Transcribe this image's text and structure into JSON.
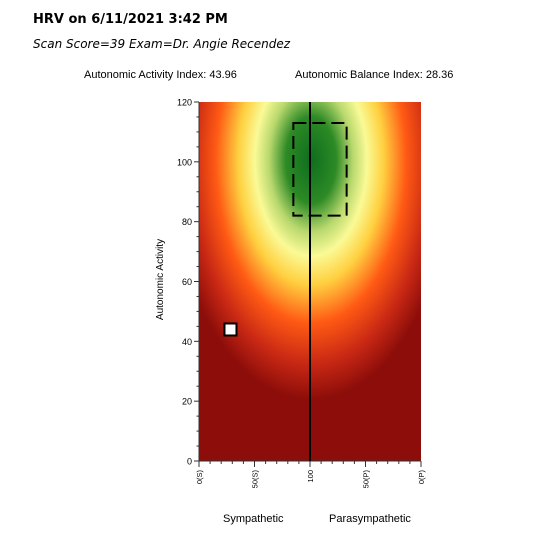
{
  "header": {
    "title": "HRV on 6/11/2021 3:42 PM",
    "subtitle": "Scan Score=39 Exam=Dr. Angie Recendez",
    "activity_index": "Autonomic Activity Index: 43.96",
    "balance_index": "Autonomic Balance Index: 28.36"
  },
  "chart_data": {
    "type": "heatmap",
    "title": "",
    "ylabel": "Autonomic Activity",
    "xlim": [
      0,
      200
    ],
    "ylim": [
      0,
      120
    ],
    "y_ticks": [
      0,
      20,
      40,
      60,
      80,
      100,
      120
    ],
    "x_ticks": [
      {
        "value": 0,
        "label": "0(S)"
      },
      {
        "value": 50,
        "label": "50(S)"
      },
      {
        "value": 100,
        "label": "100"
      },
      {
        "value": 150,
        "label": "50(P)"
      },
      {
        "value": 200,
        "label": "0(P)"
      }
    ],
    "x_side_labels": {
      "left": "Sympathetic",
      "right": "Parasympathetic"
    },
    "center_line": {
      "x": 100
    },
    "target_region": {
      "x": [
        85,
        133
      ],
      "y": [
        82,
        113
      ]
    },
    "marker": {
      "x": 28.36,
      "y": 43.96
    },
    "colors": {
      "background": "#8c0d0a",
      "orange": "#ff5a14",
      "yellow": "#fafa96",
      "green": "#0d6e1e"
    }
  }
}
